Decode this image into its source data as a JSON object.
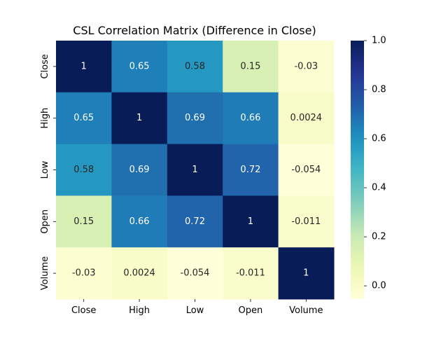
{
  "chart_data": {
    "type": "heatmap",
    "title": "CSL Correlation Matrix (Difference in Close)",
    "xlabel": "",
    "ylabel": "",
    "rows": [
      "Close",
      "High",
      "Low",
      "Open",
      "Volume"
    ],
    "columns": [
      "Close",
      "High",
      "Low",
      "Open",
      "Volume"
    ],
    "values": [
      [
        1,
        0.65,
        0.58,
        0.15,
        -0.03
      ],
      [
        0.65,
        1,
        0.69,
        0.66,
        0.0024
      ],
      [
        0.58,
        0.69,
        1,
        0.72,
        -0.054
      ],
      [
        0.15,
        0.66,
        0.72,
        1,
        -0.011
      ],
      [
        -0.03,
        0.0024,
        -0.054,
        -0.011,
        1
      ]
    ],
    "cell_labels": [
      [
        "1",
        "0.65",
        "0.58",
        "0.15",
        "-0.03"
      ],
      [
        "0.65",
        "1",
        "0.69",
        "0.66",
        "0.0024"
      ],
      [
        "0.58",
        "0.69",
        "1",
        "0.72",
        "-0.054"
      ],
      [
        "0.15",
        "0.66",
        "0.72",
        "1",
        "-0.011"
      ],
      [
        "-0.03",
        "0.0024",
        "-0.054",
        "-0.011",
        "1"
      ]
    ],
    "colormap": "YlGnBu",
    "vmin": -0.054,
    "vmax": 1,
    "colorbar_ticks": [
      0.0,
      0.2,
      0.4,
      0.6,
      0.8,
      1.0
    ],
    "colorbar_tick_labels": [
      "0.0",
      "0.2",
      "0.4",
      "0.6",
      "0.8",
      "1.0"
    ],
    "grid": false,
    "colorbar_position": "right"
  }
}
